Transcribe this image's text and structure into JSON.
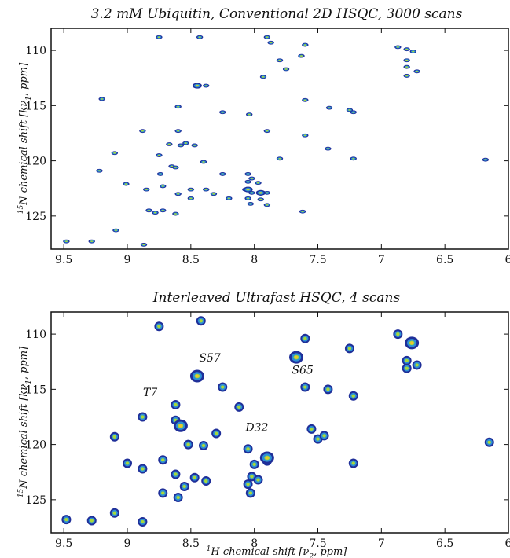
{
  "colors": {
    "contour_outer": "#1f2f99",
    "contour_mid": "#2c8fd6",
    "contour_inner": "#a8d83a",
    "contour_peak": "#f2c230",
    "contour_max": "#d22a1e",
    "axis": "#111111"
  },
  "chart_data": [
    {
      "type": "scatter",
      "title": "3.2 mM Ubiquitin, Conventional 2D HSQC, 3000 scans",
      "ylabel_parts": [
        "15",
        "N chemical shift [",
        "k",
        "ν",
        "1",
        ", ppm]"
      ],
      "x_ticks": [
        "9.5",
        "9",
        "8.5",
        "8",
        "7.5",
        "7",
        "6.5",
        "6"
      ],
      "y_ticks": [
        "110",
        "115",
        "120",
        "125"
      ],
      "xlim": [
        9.6,
        6.0
      ],
      "ylim": [
        108,
        128
      ],
      "x_reversed": true,
      "y_reversed": true,
      "peaks": [
        [
          8.75,
          108.8
        ],
        [
          8.43,
          108.8
        ],
        [
          7.9,
          108.8
        ],
        [
          7.87,
          109.3
        ],
        [
          7.6,
          109.5
        ],
        [
          6.87,
          109.7
        ],
        [
          6.8,
          109.9
        ],
        [
          6.75,
          110.1
        ],
        [
          7.63,
          110.5
        ],
        [
          6.8,
          110.9
        ],
        [
          7.8,
          110.9
        ],
        [
          6.8,
          111.5
        ],
        [
          7.75,
          111.7
        ],
        [
          6.72,
          111.9
        ],
        [
          6.8,
          112.3
        ],
        [
          7.93,
          112.4
        ],
        [
          8.44,
          113.2
        ],
        [
          8.38,
          113.2
        ],
        [
          9.2,
          114.4
        ],
        [
          7.6,
          114.5
        ],
        [
          8.6,
          115.1
        ],
        [
          7.41,
          115.2
        ],
        [
          7.25,
          115.4
        ],
        [
          7.22,
          115.6
        ],
        [
          8.25,
          115.6
        ],
        [
          8.04,
          115.8
        ],
        [
          8.88,
          117.3
        ],
        [
          8.6,
          117.3
        ],
        [
          7.9,
          117.3
        ],
        [
          7.6,
          117.7
        ],
        [
          8.54,
          118.4
        ],
        [
          8.67,
          118.5
        ],
        [
          8.47,
          118.6
        ],
        [
          7.42,
          118.9
        ],
        [
          8.58,
          118.6
        ],
        [
          9.1,
          119.3
        ],
        [
          8.75,
          119.5
        ],
        [
          7.22,
          119.8
        ],
        [
          6.18,
          119.9
        ],
        [
          7.8,
          119.8
        ],
        [
          8.4,
          120.1
        ],
        [
          8.65,
          120.5
        ],
        [
          8.62,
          120.6
        ],
        [
          9.22,
          120.9
        ],
        [
          8.74,
          121.2
        ],
        [
          8.25,
          121.2
        ],
        [
          8.05,
          121.2
        ],
        [
          8.02,
          121.6
        ],
        [
          8.05,
          121.9
        ],
        [
          7.97,
          122.0
        ],
        [
          8.72,
          122.3
        ],
        [
          9.01,
          122.1
        ],
        [
          8.85,
          122.6
        ],
        [
          8.5,
          122.6
        ],
        [
          8.38,
          122.6
        ],
        [
          8.07,
          122.6
        ],
        [
          8.02,
          122.9
        ],
        [
          7.9,
          122.9
        ],
        [
          8.6,
          123.0
        ],
        [
          8.5,
          123.4
        ],
        [
          8.32,
          123.0
        ],
        [
          8.2,
          123.4
        ],
        [
          8.05,
          123.4
        ],
        [
          7.95,
          123.5
        ],
        [
          8.03,
          123.9
        ],
        [
          7.9,
          124.0
        ],
        [
          8.72,
          124.5
        ],
        [
          8.62,
          124.8
        ],
        [
          7.62,
          124.6
        ],
        [
          8.78,
          124.7
        ],
        [
          8.83,
          124.5
        ],
        [
          9.09,
          126.3
        ],
        [
          9.48,
          127.3
        ],
        [
          9.28,
          127.3
        ],
        [
          8.87,
          127.6
        ]
      ],
      "hot_peaks": [
        [
          8.45,
          113.2
        ],
        [
          8.05,
          122.6
        ],
        [
          7.95,
          122.9
        ]
      ]
    },
    {
      "type": "scatter",
      "title": "Interleaved Ultrafast HSQC, 4 scans",
      "xlabel_parts": [
        "1",
        "H chemical shift [",
        "ν",
        "2",
        ", ppm]"
      ],
      "ylabel_parts": [
        "15",
        "N chemical shift [",
        "k",
        "ν",
        "1",
        ", ppm]"
      ],
      "x_ticks": [
        "9.5",
        "9",
        "8.5",
        "8",
        "7.5",
        "7",
        "6.5",
        "6"
      ],
      "y_ticks": [
        "110",
        "115",
        "120",
        "125"
      ],
      "xlim": [
        9.6,
        6.0
      ],
      "ylim": [
        108,
        128
      ],
      "x_reversed": true,
      "y_reversed": true,
      "annotations": [
        {
          "text": "T7",
          "x": 8.82,
          "y": 115.6
        },
        {
          "text": "S57",
          "x": 8.35,
          "y": 112.5
        },
        {
          "text": "D32",
          "x": 7.98,
          "y": 118.8
        },
        {
          "text": "S65",
          "x": 7.62,
          "y": 113.6
        }
      ],
      "peaks": [
        [
          8.42,
          108.8
        ],
        [
          8.75,
          109.3
        ],
        [
          6.87,
          110.0
        ],
        [
          7.6,
          110.4
        ],
        [
          7.25,
          111.3
        ],
        [
          6.8,
          112.4
        ],
        [
          6.8,
          113.1
        ],
        [
          6.72,
          112.8
        ],
        [
          7.6,
          114.8
        ],
        [
          7.42,
          115.0
        ],
        [
          8.25,
          114.8
        ],
        [
          7.22,
          115.6
        ],
        [
          8.62,
          116.4
        ],
        [
          8.12,
          116.6
        ],
        [
          8.88,
          117.5
        ],
        [
          8.62,
          117.8
        ],
        [
          8.3,
          119.0
        ],
        [
          7.55,
          118.6
        ],
        [
          7.5,
          119.5
        ],
        [
          7.45,
          119.2
        ],
        [
          9.1,
          119.3
        ],
        [
          8.4,
          120.1
        ],
        [
          8.52,
          120.0
        ],
        [
          8.05,
          120.4
        ],
        [
          9.0,
          121.7
        ],
        [
          8.72,
          121.4
        ],
        [
          8.88,
          122.2
        ],
        [
          8.0,
          121.8
        ],
        [
          8.02,
          122.9
        ],
        [
          7.9,
          121.5
        ],
        [
          8.62,
          122.7
        ],
        [
          8.47,
          123.0
        ],
        [
          8.38,
          123.3
        ],
        [
          8.55,
          123.8
        ],
        [
          8.72,
          124.4
        ],
        [
          8.6,
          124.8
        ],
        [
          8.05,
          123.6
        ],
        [
          8.03,
          124.4
        ],
        [
          7.22,
          121.7
        ],
        [
          9.48,
          126.8
        ],
        [
          9.28,
          126.9
        ],
        [
          9.1,
          126.2
        ],
        [
          8.88,
          127.0
        ],
        [
          6.15,
          119.8
        ],
        [
          7.97,
          123.2
        ]
      ],
      "hot_peaks": [
        [
          8.45,
          113.8
        ],
        [
          8.58,
          118.3
        ],
        [
          6.76,
          110.8
        ],
        [
          7.67,
          112.1
        ],
        [
          7.9,
          121.2
        ]
      ],
      "max_peaks": [
        [
          7.9,
          121.3
        ]
      ]
    }
  ]
}
